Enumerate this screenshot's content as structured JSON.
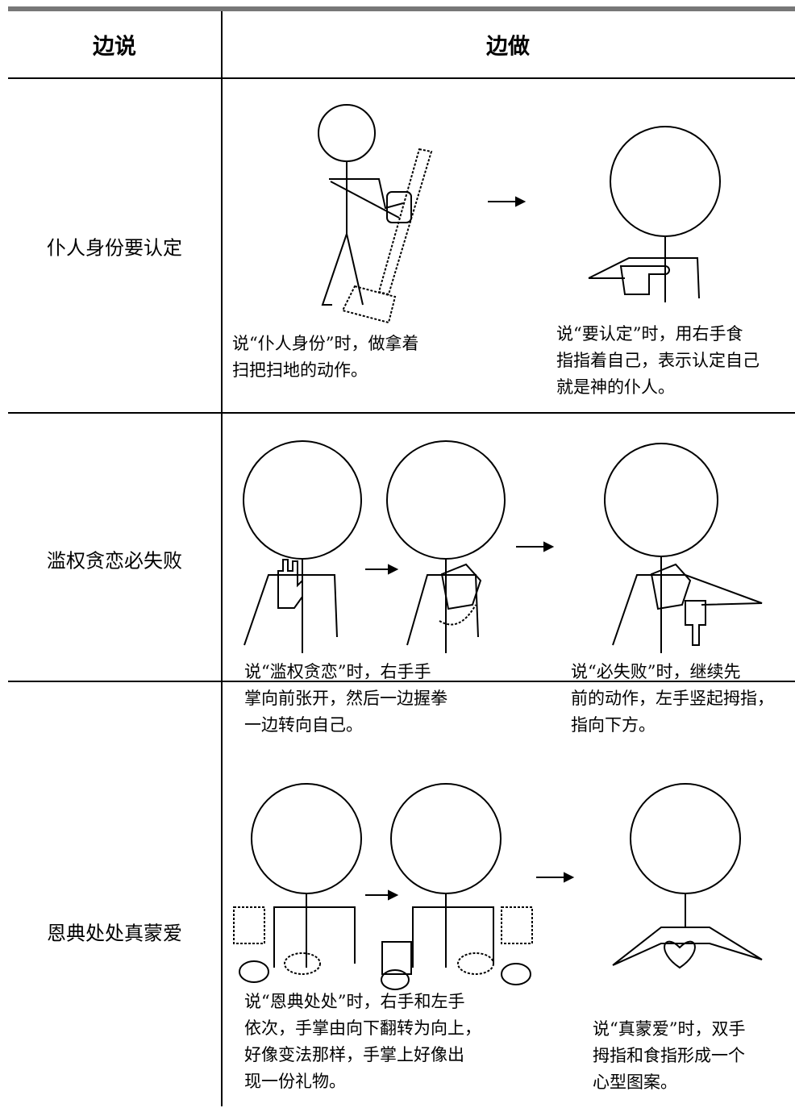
{
  "table": {
    "header": [
      "边说",
      "边做"
    ],
    "rows": [
      {
        "phrase": "仆人身份要认定",
        "captions": [
          {
            "lines": [
              "说“仆人身份”时，做拿着",
              "扫把扫地的动作。"
            ]
          },
          {
            "lines": [
              "说“要认定”时，用右手食",
              "指指着自己，表示认定自己",
              "就是神的仆人。"
            ]
          }
        ]
      },
      {
        "phrase": "滥权贪恋必失败",
        "captions": [
          {
            "lines": [
              "说“滥权贪恋”时，右手手",
              "掌向前张开，然后一边握拳",
              "一边转向自己。"
            ]
          },
          {
            "lines": [
              "说“必失败”时，继续先",
              "前的动作，左手竖起拇指，",
              "指向下方。"
            ]
          }
        ]
      },
      {
        "phrase": "恩典处处真蒙爱",
        "captions": [
          {
            "lines": [
              "说“恩典处处”时，右手和左手",
              "依次，手掌由向下翻转为向上，",
              "好像变法那样，手掌上好像出",
              "现一份礼物。"
            ]
          },
          {
            "lines": [
              "说“真蒙爱”时，双手",
              "拇指和食指形成一个",
              "心型图案。"
            ]
          }
        ]
      }
    ]
  }
}
